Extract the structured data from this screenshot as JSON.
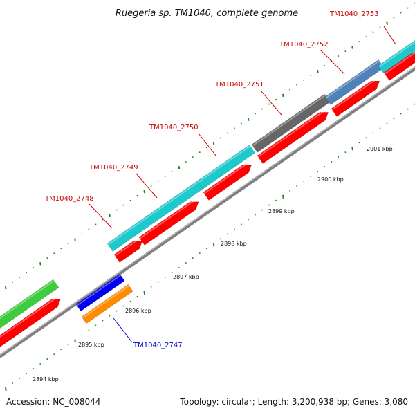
{
  "title": "Ruegeria sp. TM1040, complete genome",
  "footer": {
    "accession": "Accession: NC_008044",
    "summary": "Topology: circular; Length: 3,200,938 bp; Genes: 3,080"
  },
  "colors": {
    "backbone": "#808080",
    "red": "#ff0000",
    "cyan": "#1ec9cc",
    "dark_gray": "#666666",
    "steel_blue": "#4f82b8",
    "green": "#3ccc3c",
    "blue": "#0000ee",
    "orange": "#ff8c00",
    "tick": "#1f8a1f",
    "label_red": "#cc0000",
    "label_blue": "#0000cc"
  },
  "gene_labels": [
    {
      "text": "TM1040_2753",
      "color": "red"
    },
    {
      "text": "TM1040_2752",
      "color": "red"
    },
    {
      "text": "TM1040_2751",
      "color": "red"
    },
    {
      "text": "TM1040_2750",
      "color": "red"
    },
    {
      "text": "TM1040_2749",
      "color": "red"
    },
    {
      "text": "TM1040_2748",
      "color": "red"
    },
    {
      "text": "TM1040_2747",
      "color": "blue"
    }
  ],
  "kbp_labels": [
    "2894 kbp",
    "2895 kbp",
    "2896 kbp",
    "2897 kbp",
    "2898 kbp",
    "2899 kbp",
    "2900 kbp",
    "2901 kbp"
  ]
}
